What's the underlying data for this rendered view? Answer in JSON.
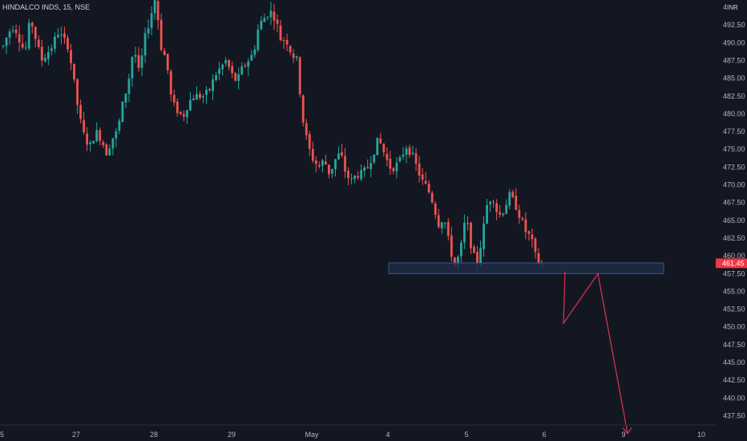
{
  "header": {
    "symbol": "HINDALCO INDS, 15, NSE",
    "currency": "INR"
  },
  "colors": {
    "background": "#131722",
    "up": "#26a69a",
    "down": "#ef5350",
    "zone_fill": "#1e2a45",
    "zone_stroke": "#3d5a8a",
    "arrow": "#e0334e",
    "last_price_bg": "#f23645"
  },
  "last_price": "461.45",
  "chart_data": {
    "type": "candlestick",
    "title": "HINDALCO INDS, 15, NSE",
    "ylim": [
      436,
      497.5
    ],
    "y_ticks": [
      "4",
      "492.50",
      "490.00",
      "487.50",
      "485.00",
      "482.50",
      "480.00",
      "477.50",
      "475.00",
      "472.50",
      "470.00",
      "467.50",
      "465.00",
      "462.50",
      "460.00",
      "457.50",
      "455.00",
      "452.50",
      "450.00",
      "447.50",
      "445.00",
      "442.50",
      "440.00",
      "437.50"
    ],
    "x_ticks": [
      "5",
      "27",
      "28",
      "29",
      "May",
      "4",
      "5",
      "6",
      "9",
      "10"
    ],
    "close_path": [
      492,
      494,
      495,
      493,
      491,
      496,
      493,
      490,
      491,
      492,
      494,
      493,
      492,
      487,
      482,
      479,
      478,
      480,
      479,
      477,
      479,
      480,
      484,
      487,
      492,
      488,
      493,
      496,
      499,
      492,
      490,
      484,
      483,
      482,
      484,
      485,
      485,
      485,
      486,
      488,
      489,
      490,
      488,
      487,
      489,
      490,
      491,
      495,
      496,
      497,
      496,
      493,
      493,
      491,
      490,
      482,
      478,
      476,
      475,
      476,
      474,
      476,
      477,
      474,
      473,
      474,
      474,
      475,
      477,
      479,
      477,
      475,
      475,
      476,
      478,
      477,
      475,
      473,
      472,
      470,
      467,
      468,
      464,
      461,
      463,
      468,
      464,
      461,
      465,
      470,
      471,
      468,
      469,
      471,
      470,
      468,
      466,
      465,
      462,
      461
    ],
    "support_zone": [
      460,
      461.5
    ],
    "projection": [
      460.3,
      453,
      460,
      437.5
    ]
  }
}
